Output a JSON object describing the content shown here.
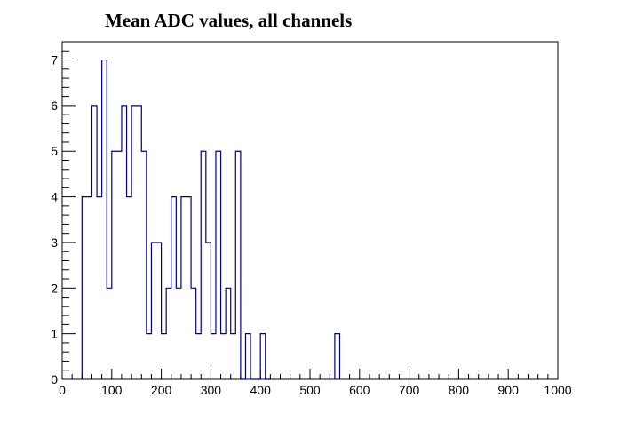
{
  "chart_data": {
    "type": "histogram",
    "title": "Mean ADC values, all channels",
    "xlabel": "",
    "ylabel": "",
    "xlim": [
      0,
      1000
    ],
    "ylim": [
      0,
      7.4
    ],
    "x_ticks": [
      0,
      100,
      200,
      300,
      400,
      500,
      600,
      700,
      800,
      900,
      1000
    ],
    "y_ticks": [
      0,
      1,
      2,
      3,
      4,
      5,
      6,
      7
    ],
    "grid": false,
    "legend": "none",
    "line_color": "#000080",
    "bin_width": 10,
    "bins": [
      {
        "x_low": 40,
        "value": 4
      },
      {
        "x_low": 50,
        "value": 4
      },
      {
        "x_low": 60,
        "value": 6
      },
      {
        "x_low": 70,
        "value": 4
      },
      {
        "x_low": 80,
        "value": 7
      },
      {
        "x_low": 90,
        "value": 2
      },
      {
        "x_low": 100,
        "value": 5
      },
      {
        "x_low": 110,
        "value": 5
      },
      {
        "x_low": 120,
        "value": 6
      },
      {
        "x_low": 130,
        "value": 4
      },
      {
        "x_low": 140,
        "value": 6
      },
      {
        "x_low": 150,
        "value": 6
      },
      {
        "x_low": 160,
        "value": 5
      },
      {
        "x_low": 170,
        "value": 1
      },
      {
        "x_low": 180,
        "value": 3
      },
      {
        "x_low": 190,
        "value": 3
      },
      {
        "x_low": 200,
        "value": 1
      },
      {
        "x_low": 210,
        "value": 2
      },
      {
        "x_low": 220,
        "value": 4
      },
      {
        "x_low": 230,
        "value": 2
      },
      {
        "x_low": 240,
        "value": 4
      },
      {
        "x_low": 250,
        "value": 4
      },
      {
        "x_low": 260,
        "value": 2
      },
      {
        "x_low": 270,
        "value": 1
      },
      {
        "x_low": 280,
        "value": 5
      },
      {
        "x_low": 290,
        "value": 3
      },
      {
        "x_low": 300,
        "value": 1
      },
      {
        "x_low": 310,
        "value": 5
      },
      {
        "x_low": 320,
        "value": 1
      },
      {
        "x_low": 330,
        "value": 2
      },
      {
        "x_low": 340,
        "value": 1
      },
      {
        "x_low": 350,
        "value": 5
      },
      {
        "x_low": 360,
        "value": 0
      },
      {
        "x_low": 370,
        "value": 1
      },
      {
        "x_low": 380,
        "value": 0
      },
      {
        "x_low": 390,
        "value": 0
      },
      {
        "x_low": 400,
        "value": 1
      },
      {
        "x_low": 410,
        "value": 0
      },
      {
        "x_low": 550,
        "value": 1
      }
    ]
  }
}
